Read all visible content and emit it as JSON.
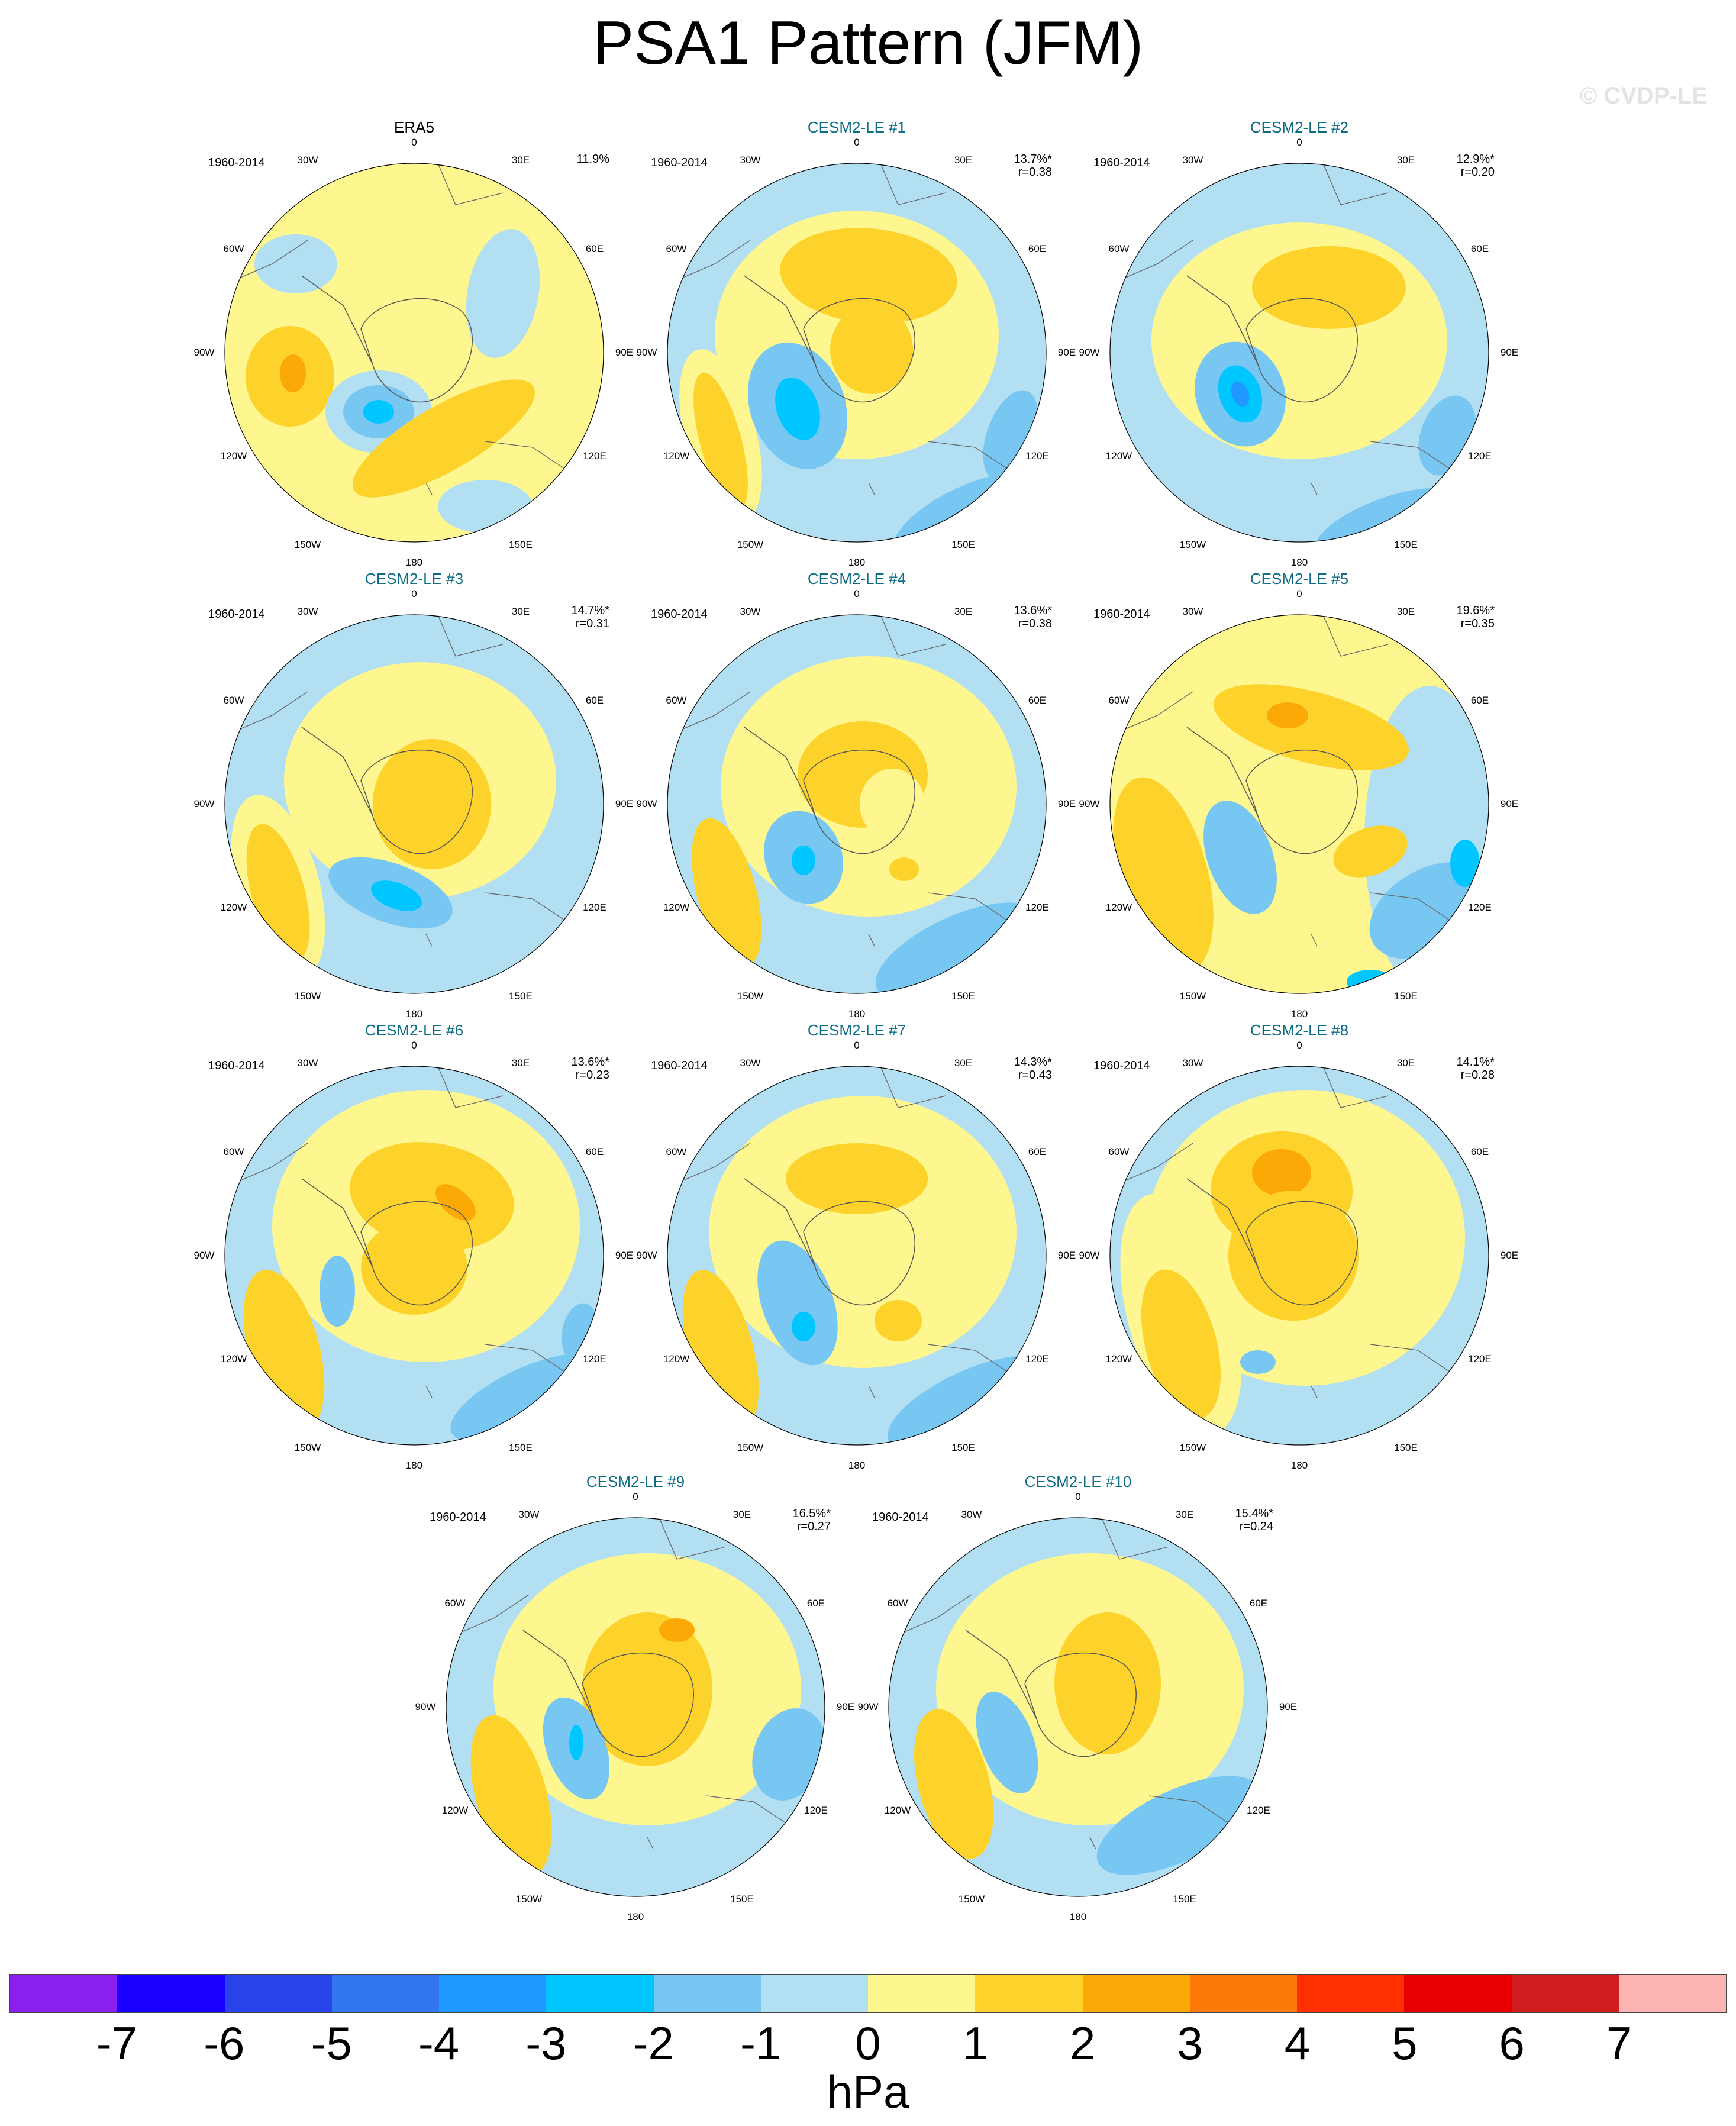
{
  "title": "PSA1 Pattern (JFM)",
  "watermark": "© CVDP-LE",
  "panels": [
    {
      "name": "ERA5",
      "observed": true,
      "period": "1960-2014",
      "pct": "11.9%",
      "r": ""
    },
    {
      "name": "CESM2-LE #1",
      "observed": false,
      "period": "1960-2014",
      "pct": "13.7%*",
      "r": "r=0.38"
    },
    {
      "name": "CESM2-LE #2",
      "observed": false,
      "period": "1960-2014",
      "pct": "12.9%*",
      "r": "r=0.20"
    },
    {
      "name": "CESM2-LE #3",
      "observed": false,
      "period": "1960-2014",
      "pct": "14.7%*",
      "r": "r=0.31"
    },
    {
      "name": "CESM2-LE #4",
      "observed": false,
      "period": "1960-2014",
      "pct": "13.6%*",
      "r": "r=0.38"
    },
    {
      "name": "CESM2-LE #5",
      "observed": false,
      "period": "1960-2014",
      "pct": "19.6%*",
      "r": "r=0.35"
    },
    {
      "name": "CESM2-LE #6",
      "observed": false,
      "period": "1960-2014",
      "pct": "13.6%*",
      "r": "r=0.23"
    },
    {
      "name": "CESM2-LE #7",
      "observed": false,
      "period": "1960-2014",
      "pct": "14.3%*",
      "r": "r=0.43"
    },
    {
      "name": "CESM2-LE #8",
      "observed": false,
      "period": "1960-2014",
      "pct": "14.1%*",
      "r": "r=0.28"
    },
    {
      "name": "CESM2-LE #9",
      "observed": false,
      "period": "1960-2014",
      "pct": "16.5%*",
      "r": "r=0.27"
    },
    {
      "name": "CESM2-LE #10",
      "observed": false,
      "period": "1960-2014",
      "pct": "15.4%*",
      "r": "r=0.24"
    }
  ],
  "longitude_labels": [
    "0",
    "30E",
    "60E",
    "90E",
    "120E",
    "150E",
    "180",
    "150W",
    "120W",
    "90W",
    "60W",
    "30W"
  ],
  "colorbar": {
    "colors": [
      "#8a1ff0",
      "#1c00ff",
      "#2b43ea",
      "#3377ee",
      "#1f98ff",
      "#00c6ff",
      "#78c7f2",
      "#b3dff2",
      "#fef78f",
      "#fdd22b",
      "#fba907",
      "#fc7a0a",
      "#ff2f00",
      "#e80000",
      "#d01e1e",
      "#ffb4b4"
    ],
    "ticks": [
      "-7",
      "-6",
      "-5",
      "-4",
      "-3",
      "-2",
      "-1",
      "0",
      "1",
      "2",
      "3",
      "4",
      "5",
      "6",
      "7"
    ],
    "units": "hPa"
  }
}
